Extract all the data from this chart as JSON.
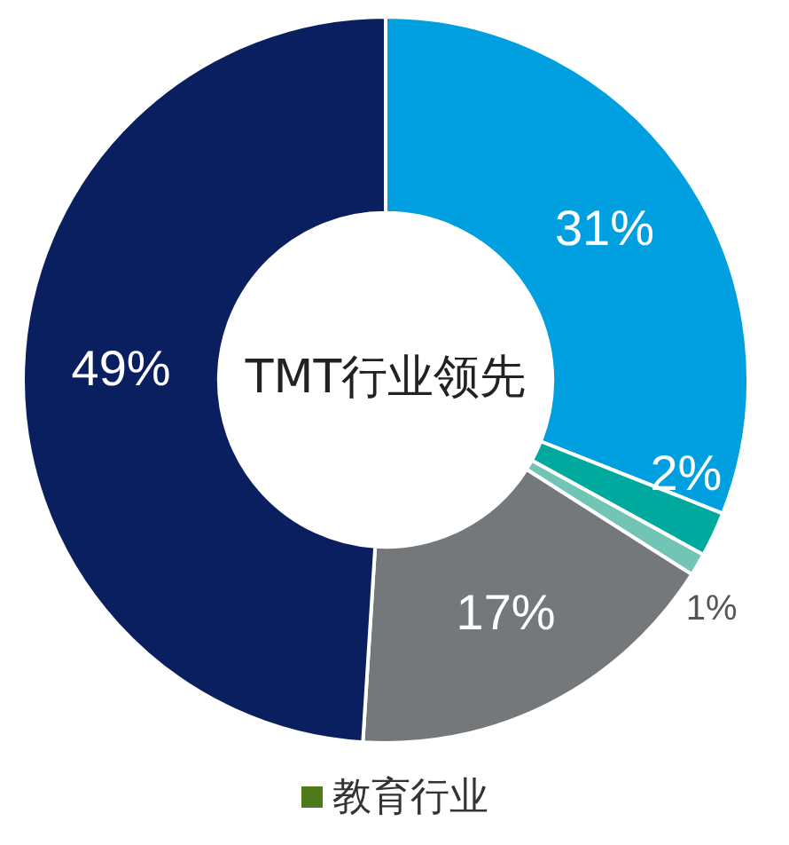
{
  "chart_data": {
    "type": "donut",
    "title": "TMT行业领先",
    "categories": [
      null,
      null,
      null,
      null,
      null
    ],
    "values": [
      31,
      2,
      1,
      17,
      49
    ],
    "colors": [
      "#00a0e0",
      "#00a99d",
      "#72c5b4",
      "#75787b",
      "#0a1f5f"
    ],
    "value_labels": [
      "31%",
      "2%",
      "1%",
      "17%",
      "49%"
    ],
    "annotations": [
      "教育行业"
    ],
    "legend": false
  }
}
